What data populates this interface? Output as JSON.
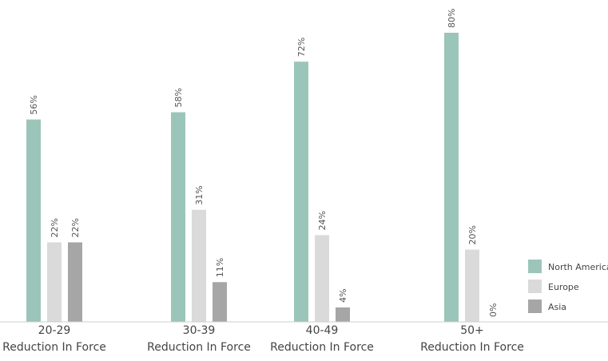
{
  "chart_data": {
    "type": "bar",
    "title": "",
    "xlabel": "",
    "ylabel": "",
    "ylim": [
      0,
      80
    ],
    "grid": false,
    "legend_position": "right",
    "categories": [
      [
        "20-29",
        "Reduction In Force"
      ],
      [
        "30-39",
        "Reduction In Force"
      ],
      [
        "40-49",
        "Reduction In Force"
      ],
      [
        "50+",
        "Reduction In Force"
      ]
    ],
    "series": [
      {
        "name": "North America",
        "color": "#9CC5B9",
        "values": [
          56,
          58,
          72,
          80
        ],
        "labels": [
          "56%",
          "58%",
          "72%",
          "80%"
        ]
      },
      {
        "name": "Europe",
        "color": "#DADADA",
        "values": [
          22,
          31,
          24,
          20
        ],
        "labels": [
          "22%",
          "31%",
          "24%",
          "20%"
        ]
      },
      {
        "name": "Asia",
        "color": "#A6A6A6",
        "values": [
          22,
          11,
          4,
          0
        ],
        "labels": [
          "22%",
          "11%",
          "4%",
          "0%"
        ]
      }
    ]
  }
}
